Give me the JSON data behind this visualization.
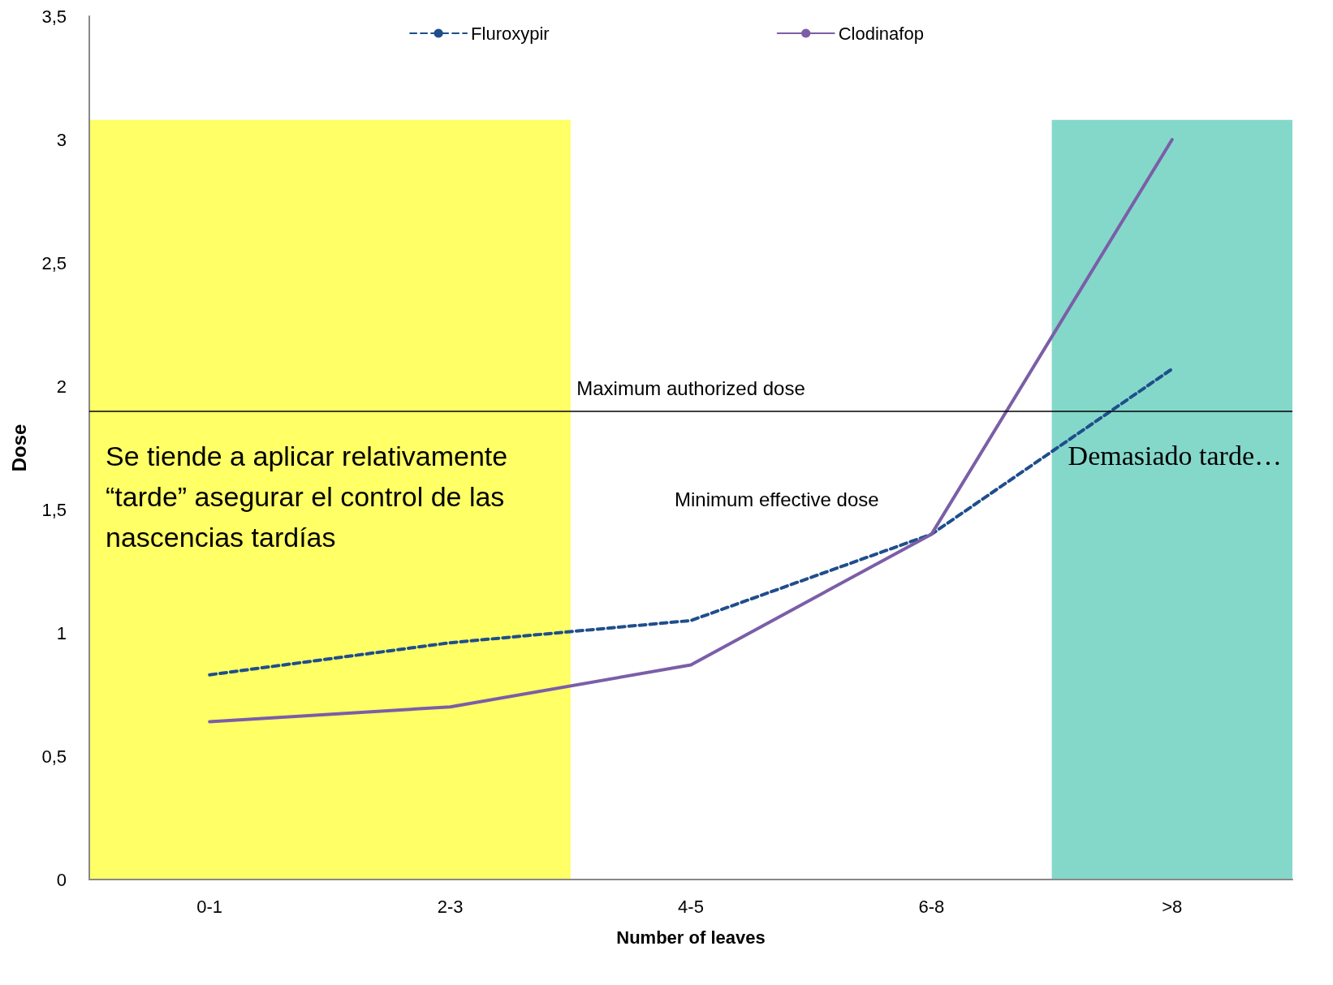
{
  "chart_data": {
    "type": "line",
    "xlabel": "Number of leaves",
    "ylabel": "Dose",
    "categories": [
      "0-1",
      "2-3",
      "4-5",
      "6-8",
      ">8"
    ],
    "series": [
      {
        "name": "Fluroxypir",
        "color": "#1f4e8c",
        "line_style": "dashed",
        "values": [
          0.83,
          0.96,
          1.05,
          1.4,
          2.07
        ]
      },
      {
        "name": "Clodinafop",
        "color": "#7b5ea7",
        "line_style": "solid",
        "values": [
          0.64,
          0.7,
          0.87,
          1.4,
          3.0
        ]
      }
    ],
    "ylim": [
      0,
      3.5
    ],
    "yticks": [
      0,
      {
        "value": 0.5,
        "label": "0,5"
      },
      1,
      {
        "value": 1.5,
        "label": "1,5"
      },
      2,
      {
        "value": 2.5,
        "label": "2,5"
      },
      3,
      {
        "value": 3.5,
        "label": "3,5"
      }
    ],
    "grid": false,
    "legend": "top",
    "marker": "none",
    "ref_lines": [
      {
        "axis": "y",
        "value": 1.9,
        "label": "Maximum authorized dose",
        "color": "#000000"
      }
    ],
    "bands": [
      {
        "axis": "x",
        "from": "0-1",
        "to": "2-3",
        "label": "Se tiende a aplicar relativamente “tarde” asegurar el control de las nascencias tardías",
        "color": "#ffff33"
      },
      {
        "axis": "x",
        "from": ">8",
        "to": ">8",
        "label": "Demasiado tarde…",
        "color": "#5bcbb8"
      }
    ],
    "annotations": [
      "Minimum effective dose"
    ]
  }
}
